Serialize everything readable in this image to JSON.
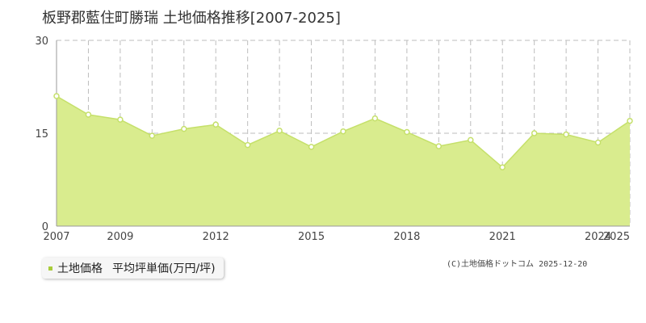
{
  "chart_data": {
    "type": "area",
    "title": "板野郡藍住町勝瑞 土地価格推移[2007-2025]",
    "xlabel": "",
    "ylabel": "",
    "x": [
      2007,
      2008,
      2009,
      2010,
      2011,
      2012,
      2013,
      2014,
      2015,
      2016,
      2017,
      2018,
      2019,
      2020,
      2021,
      2022,
      2023,
      2024,
      2025
    ],
    "x_tick_labels": [
      "2007",
      "2009",
      "2012",
      "2015",
      "2018",
      "2021",
      "2024",
      "2025"
    ],
    "xlim": [
      2007,
      2025
    ],
    "ylim": [
      0,
      30
    ],
    "y_tick_labels": [
      "0",
      "15",
      "30"
    ],
    "series": [
      {
        "name": "土地価格 平均坪単価(万円/坪)",
        "values": [
          21.0,
          18.0,
          17.2,
          14.6,
          15.7,
          16.4,
          13.1,
          15.4,
          12.8,
          15.3,
          17.4,
          15.2,
          12.9,
          13.9,
          9.5,
          15.0,
          14.8,
          13.5,
          17.0
        ]
      }
    ],
    "grid": true,
    "legend": "bottom-left"
  },
  "legend": {
    "label": "土地価格",
    "sublabel": "平均坪単価(万円/坪)"
  },
  "copyright": "(C)土地価格ドットコム 2025-12-20",
  "colors": {
    "fill": "#d9ec8e",
    "line": "#c5e06a",
    "marker": "#c5e06a",
    "legend_marker": "#a8cc3a",
    "grid": "#bdbdbd",
    "axis": "#999999",
    "background": "#ffffff"
  }
}
